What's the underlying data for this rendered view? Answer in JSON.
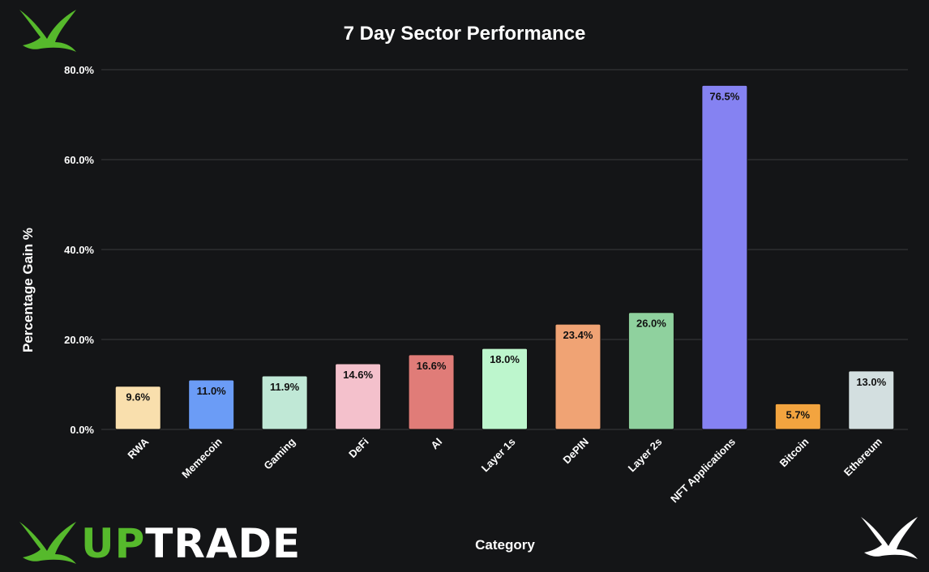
{
  "brand": {
    "name_part1": "UP",
    "name_part2": "TRADE",
    "color_green": "#56b92c",
    "color_white": "#ffffff"
  },
  "icons": [
    "bird-logo-icon"
  ],
  "chart_data": {
    "type": "bar",
    "title": "7 Day Sector Performance",
    "xlabel": "Category",
    "ylabel": "Percentage Gain %",
    "ylim": [
      0,
      80
    ],
    "yticks": [
      0,
      20,
      40,
      60,
      80
    ],
    "ytick_labels": [
      "0.0%",
      "20.0%",
      "40.0%",
      "60.0%",
      "80.0%"
    ],
    "grid": true,
    "categories": [
      "RWA",
      "Memecoin",
      "Gaming",
      "DeFi",
      "AI",
      "Layer 1s",
      "DePIN",
      "Layer 2s",
      "NFT Applications",
      "Bitcoin",
      "Ethereum"
    ],
    "values": [
      9.6,
      11.0,
      11.9,
      14.6,
      16.6,
      18.0,
      23.4,
      26.0,
      76.5,
      5.7,
      13.0
    ],
    "value_labels": [
      "9.6%",
      "11.0%",
      "11.9%",
      "14.6%",
      "16.6%",
      "18.0%",
      "23.4%",
      "26.0%",
      "76.5%",
      "5.7%",
      "13.0%"
    ],
    "colors": [
      "#f9dfad",
      "#6b9cf6",
      "#c0e8d6",
      "#f4c1cc",
      "#e07c78",
      "#bdf6cd",
      "#f0a374",
      "#8fd19e",
      "#8582f2",
      "#f3a43f",
      "#d3dfe0"
    ]
  }
}
